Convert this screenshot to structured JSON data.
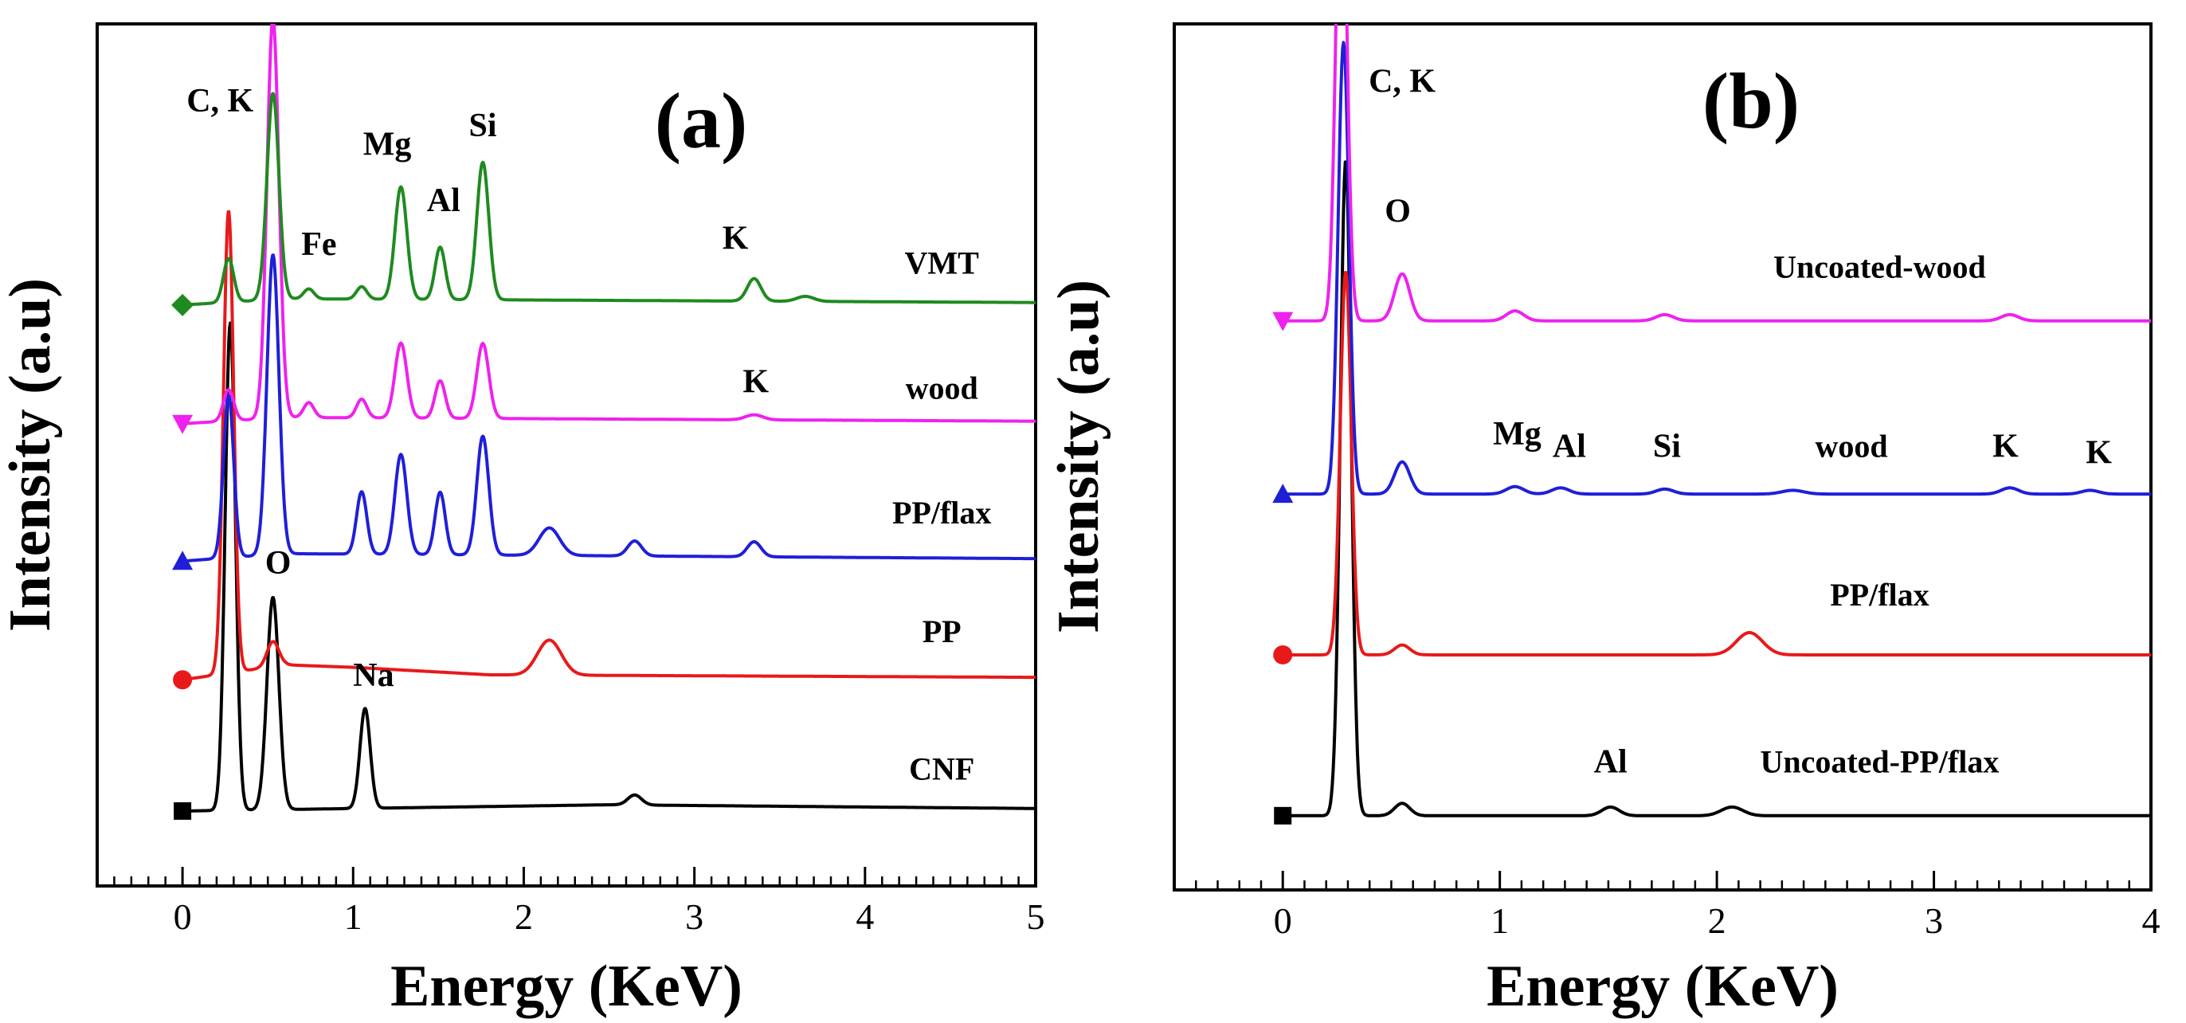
{
  "chart_data": [
    {
      "type": "line",
      "panel": "(a)",
      "xlabel": "Energy (KeV)",
      "ylabel": "Intensity (a.u)",
      "xlim": [
        -0.5,
        5
      ],
      "ylim": [
        0,
        6.9
      ],
      "xticks": [
        "0",
        "1",
        "2",
        "3",
        "4",
        "5"
      ],
      "series": [
        {
          "name": "CNF",
          "color": "#000000",
          "marker": "square",
          "offset": 0.6,
          "baseline": [
            [
              0,
              0.0
            ],
            [
              2.5,
              0.05
            ],
            [
              5,
              0.02
            ]
          ],
          "peaks": [
            [
              0.28,
              3.9,
              0.03
            ],
            [
              0.53,
              1.7,
              0.035
            ],
            [
              1.07,
              0.8,
              0.03
            ],
            [
              2.65,
              0.08,
              0.04
            ]
          ]
        },
        {
          "name": "PP",
          "color": "#e8191a",
          "marker": "circle",
          "offset": 1.65,
          "baseline": [
            [
              0,
              0.0
            ],
            [
              0.6,
              0.12
            ],
            [
              1.0,
              0.1
            ],
            [
              1.8,
              0.04
            ],
            [
              5,
              0.02
            ]
          ],
          "peaks": [
            [
              0.27,
              3.7,
              0.03
            ],
            [
              0.53,
              0.2,
              0.035
            ],
            [
              2.15,
              0.28,
              0.07
            ]
          ]
        },
        {
          "name": "PP/flax",
          "color": "#1f1fd8",
          "marker": "triangle-up",
          "offset": 2.6,
          "baseline": [
            [
              0,
              0.0
            ],
            [
              0.6,
              0.06
            ],
            [
              5,
              0.02
            ]
          ],
          "peaks": [
            [
              0.27,
              1.3,
              0.03
            ],
            [
              0.53,
              2.4,
              0.035
            ],
            [
              1.05,
              0.5,
              0.03
            ],
            [
              1.28,
              0.8,
              0.035
            ],
            [
              1.51,
              0.5,
              0.03
            ],
            [
              1.76,
              0.95,
              0.035
            ],
            [
              2.15,
              0.22,
              0.06
            ],
            [
              2.65,
              0.12,
              0.04
            ],
            [
              3.35,
              0.12,
              0.04
            ]
          ]
        },
        {
          "name": "wood",
          "color": "#ee22ee",
          "marker": "triangle-down",
          "offset": 3.7,
          "baseline": [
            [
              0,
              0.0
            ],
            [
              0.6,
              0.05
            ],
            [
              5,
              0.02
            ]
          ],
          "peaks": [
            [
              0.27,
              0.25,
              0.03
            ],
            [
              0.53,
              3.2,
              0.035
            ],
            [
              0.74,
              0.12,
              0.03
            ],
            [
              1.05,
              0.15,
              0.03
            ],
            [
              1.28,
              0.6,
              0.035
            ],
            [
              1.51,
              0.3,
              0.03
            ],
            [
              1.76,
              0.6,
              0.035
            ],
            [
              3.35,
              0.04,
              0.05
            ]
          ]
        },
        {
          "name": "VMT",
          "color": "#1f8a1f",
          "marker": "diamond",
          "offset": 4.65,
          "baseline": [
            [
              0,
              0.0
            ],
            [
              0.6,
              0.05
            ],
            [
              5,
              0.02
            ]
          ],
          "peaks": [
            [
              0.27,
              0.35,
              0.03
            ],
            [
              0.53,
              1.65,
              0.035
            ],
            [
              0.74,
              0.08,
              0.03
            ],
            [
              1.05,
              0.1,
              0.03
            ],
            [
              1.28,
              0.9,
              0.035
            ],
            [
              1.51,
              0.42,
              0.03
            ],
            [
              1.76,
              1.1,
              0.035
            ],
            [
              3.35,
              0.18,
              0.04
            ],
            [
              3.65,
              0.04,
              0.05
            ]
          ]
        }
      ],
      "peak_labels": [
        {
          "text": "C, K",
          "x": 0.22,
          "y": 6.2
        },
        {
          "text": "Fe",
          "x": 0.8,
          "y": 5.05
        },
        {
          "text": "Mg",
          "x": 1.2,
          "y": 5.85
        },
        {
          "text": "Al",
          "x": 1.53,
          "y": 5.4
        },
        {
          "text": "Si",
          "x": 1.76,
          "y": 6.0
        },
        {
          "text": "K",
          "x": 3.24,
          "y": 5.1
        },
        {
          "text": "K",
          "x": 3.36,
          "y": 3.95
        },
        {
          "text": "O",
          "x": 0.56,
          "y": 2.5
        },
        {
          "text": "Na",
          "x": 1.12,
          "y": 1.6
        }
      ],
      "series_labels": [
        {
          "text": "VMT",
          "x": 4.45,
          "y": 4.9
        },
        {
          "text": "wood",
          "x": 4.45,
          "y": 3.9
        },
        {
          "text": "PP/flax",
          "x": 4.45,
          "y": 2.9
        },
        {
          "text": "PP",
          "x": 4.45,
          "y": 1.95
        },
        {
          "text": "CNF",
          "x": 4.45,
          "y": 0.85
        }
      ]
    },
    {
      "type": "line",
      "panel": "(b)",
      "xlabel": "Energy (KeV)",
      "ylabel": "Intensity (a.u)",
      "xlim": [
        -0.5,
        4
      ],
      "ylim": [
        0,
        7.0
      ],
      "xticks": [
        "0",
        "1",
        "2",
        "3",
        "4"
      ],
      "series": [
        {
          "name": "Uncoated-PP/flax",
          "color": "#000000",
          "marker": "square",
          "offset": 0.6,
          "baseline": [
            [
              0,
              0.0
            ],
            [
              4,
              0.0
            ]
          ],
          "peaks": [
            [
              0.29,
              5.3,
              0.025
            ],
            [
              0.55,
              0.1,
              0.035
            ],
            [
              1.51,
              0.07,
              0.04
            ],
            [
              2.07,
              0.07,
              0.05
            ]
          ]
        },
        {
          "name": "PP/flax",
          "color": "#e8191a",
          "marker": "circle",
          "offset": 1.9,
          "baseline": [
            [
              0,
              0.0
            ],
            [
              4,
              0.0
            ]
          ],
          "peaks": [
            [
              0.29,
              3.1,
              0.025
            ],
            [
              0.55,
              0.08,
              0.035
            ],
            [
              2.15,
              0.18,
              0.06
            ]
          ]
        },
        {
          "name": "wood",
          "color": "#1f1fd8",
          "marker": "triangle-up",
          "offset": 3.2,
          "baseline": [
            [
              0,
              0.0
            ],
            [
              4,
              0.0
            ]
          ],
          "peaks": [
            [
              0.28,
              3.65,
              0.025
            ],
            [
              0.55,
              0.26,
              0.035
            ],
            [
              1.07,
              0.06,
              0.04
            ],
            [
              1.28,
              0.05,
              0.04
            ],
            [
              1.76,
              0.04,
              0.04
            ],
            [
              2.35,
              0.03,
              0.05
            ],
            [
              3.35,
              0.05,
              0.04
            ],
            [
              3.72,
              0.03,
              0.04
            ]
          ]
        },
        {
          "name": "Uncoated-wood",
          "color": "#ee22ee",
          "marker": "triangle-down",
          "offset": 4.6,
          "baseline": [
            [
              0,
              0.0
            ],
            [
              4,
              0.0
            ]
          ],
          "peaks": [
            [
              0.27,
              4.0,
              0.025
            ],
            [
              0.55,
              0.38,
              0.035
            ],
            [
              1.07,
              0.08,
              0.04
            ],
            [
              1.76,
              0.05,
              0.04
            ],
            [
              3.35,
              0.05,
              0.04
            ]
          ]
        }
      ],
      "peak_labels": [
        {
          "text": "C, K",
          "x": 0.55,
          "y": 6.45
        },
        {
          "text": "O",
          "x": 0.53,
          "y": 5.4
        },
        {
          "text": "Mg",
          "x": 1.08,
          "y": 3.6
        },
        {
          "text": "Al",
          "x": 1.32,
          "y": 3.5
        },
        {
          "text": "Si",
          "x": 1.77,
          "y": 3.5
        },
        {
          "text": "K",
          "x": 3.33,
          "y": 3.5
        },
        {
          "text": "K",
          "x": 3.76,
          "y": 3.45
        },
        {
          "text": "Al",
          "x": 1.51,
          "y": 0.95
        }
      ],
      "series_labels": [
        {
          "text": "Uncoated-wood",
          "x": 2.75,
          "y": 4.95
        },
        {
          "text": "wood",
          "x": 2.62,
          "y": 3.5
        },
        {
          "text": "PP/flax",
          "x": 2.75,
          "y": 2.3
        },
        {
          "text": "Uncoated-PP/flax",
          "x": 2.75,
          "y": 0.95
        }
      ]
    }
  ]
}
